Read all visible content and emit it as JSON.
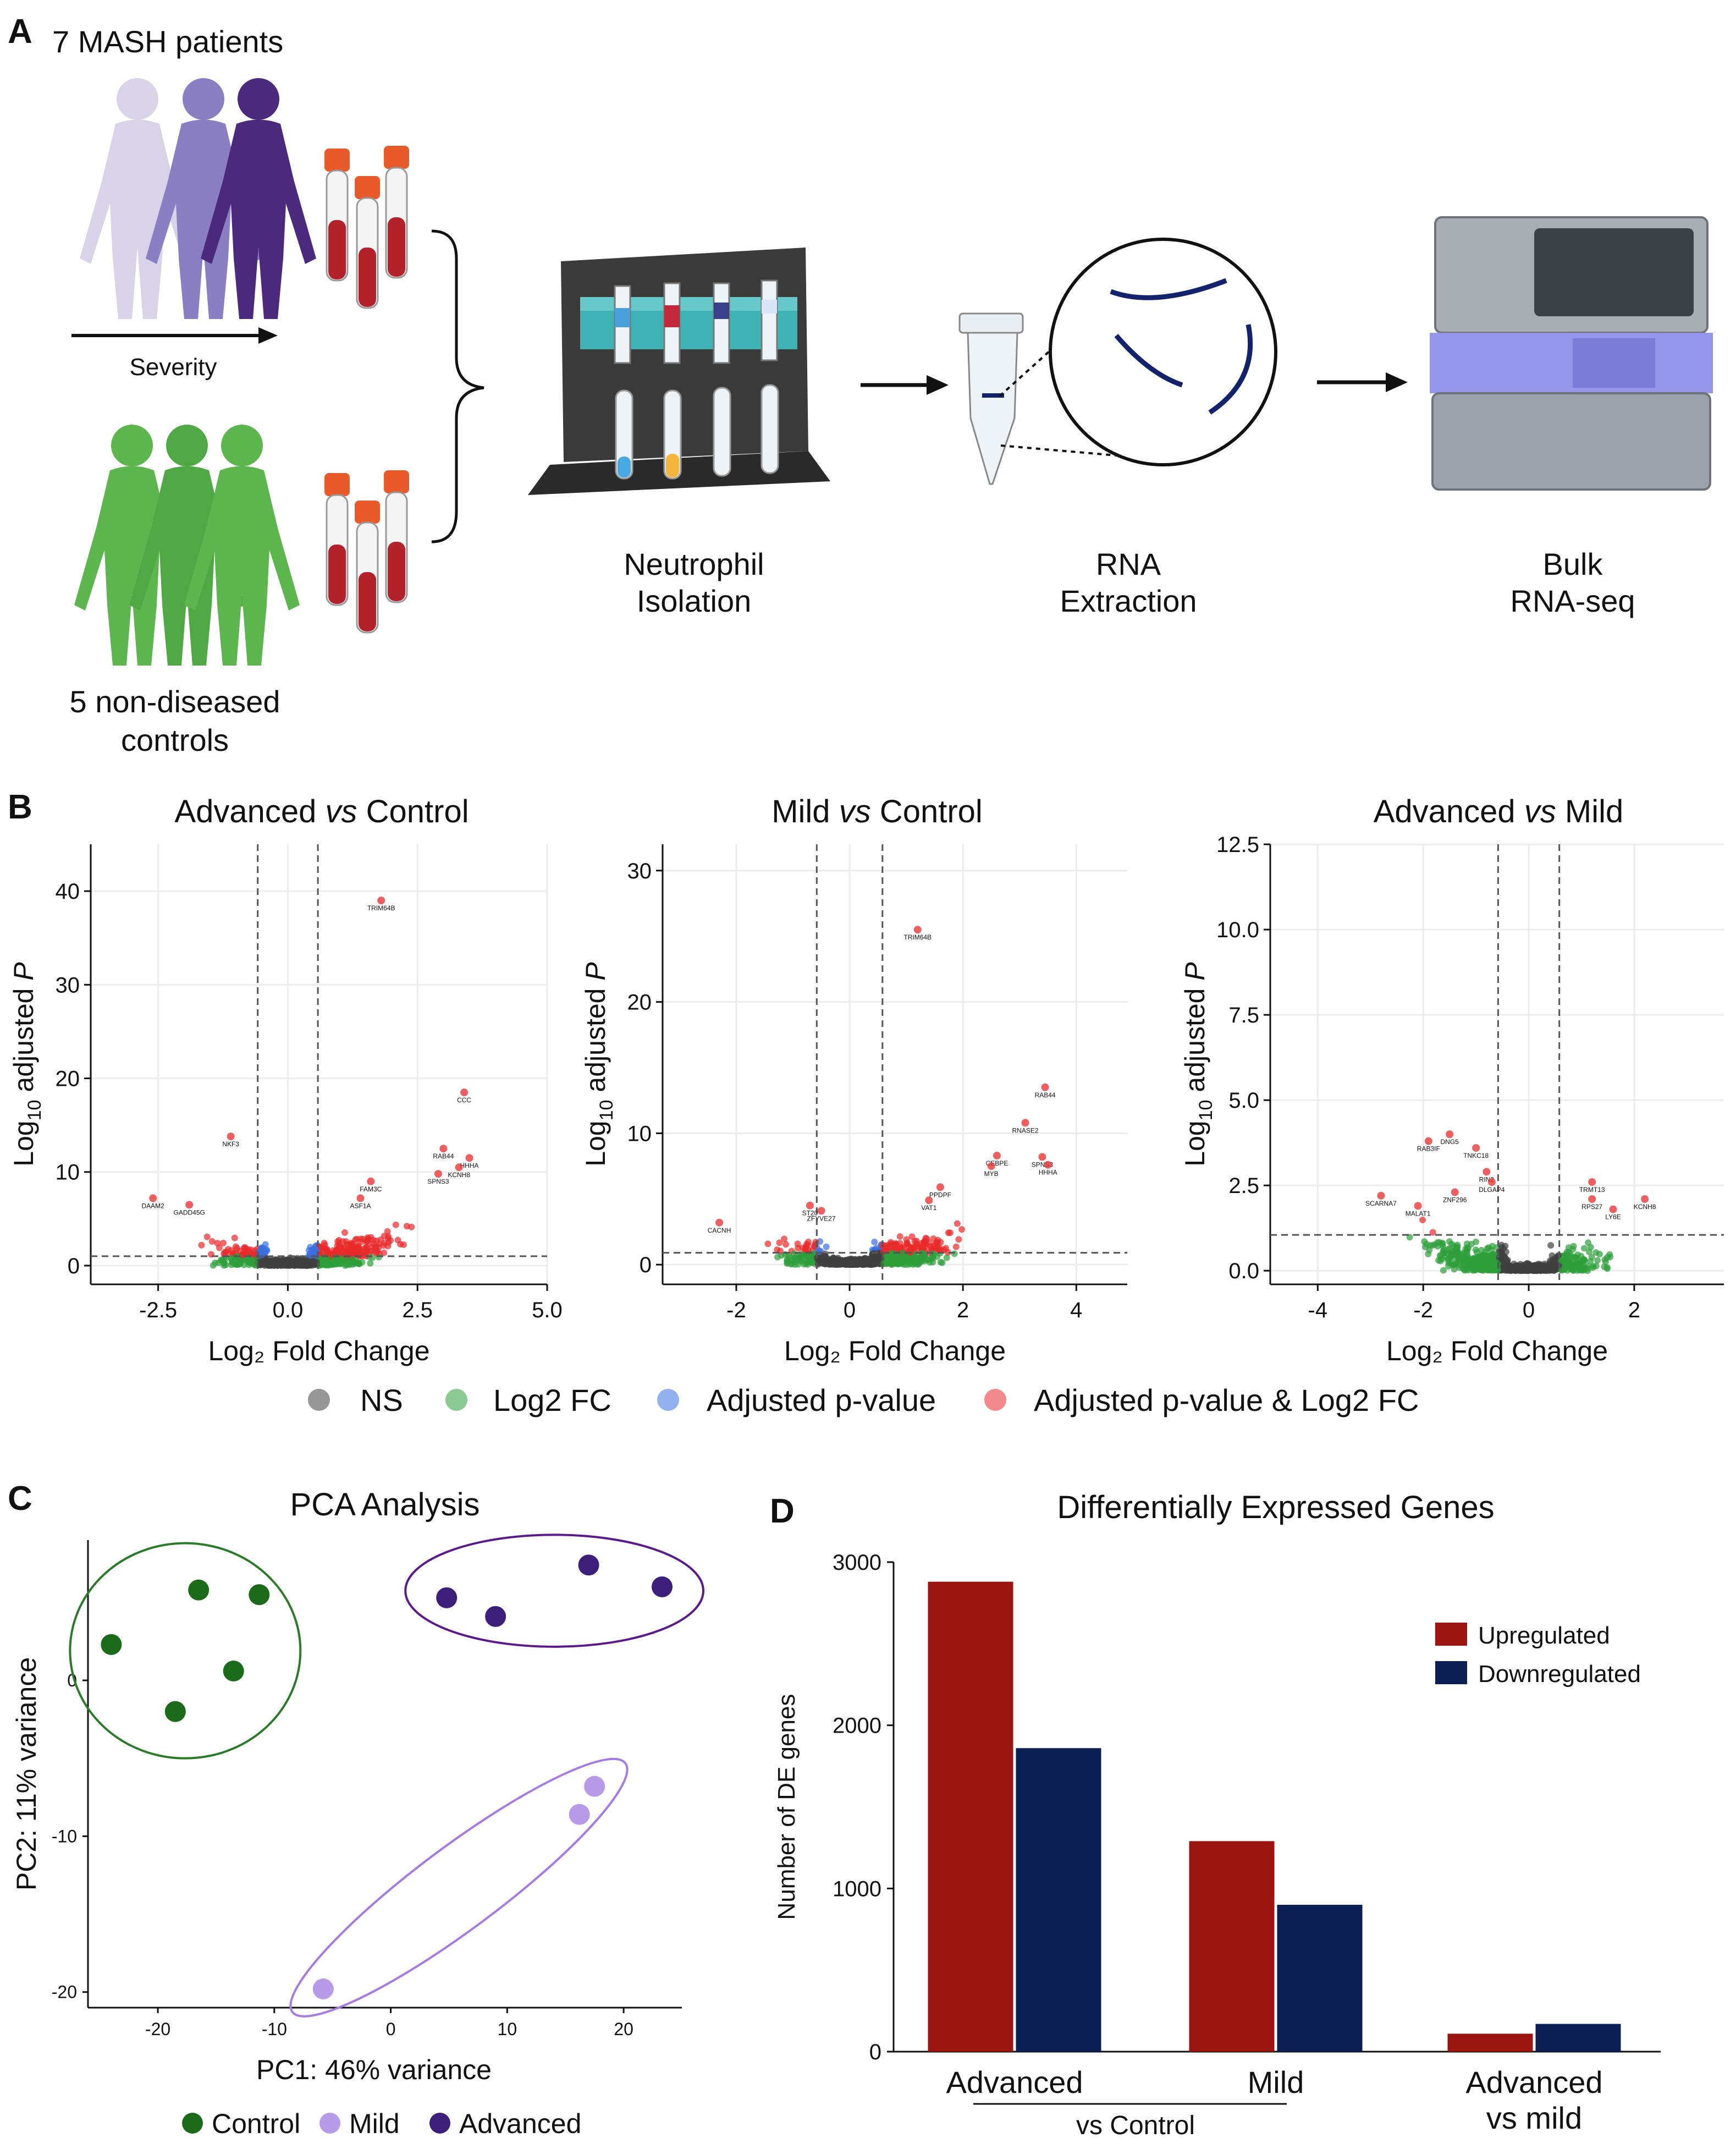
{
  "panel_labels": {
    "a": "A",
    "b": "B",
    "c": "C",
    "d": "D"
  },
  "panel_a": {
    "mash_label": "7 MASH patients",
    "severity_label": "Severity",
    "control_label_line1": "5 non-diseased",
    "control_label_line2": "controls",
    "step1_line1": "Neutrophil",
    "step1_line2": "Isolation",
    "step2_line1": "RNA",
    "step2_line2": "Extraction",
    "step3_line1": "Bulk",
    "step3_line2": "RNA-seq",
    "colors": {
      "mash_light": "#d6cfe6",
      "mash_mid": "#8a7fc2",
      "mash_dark": "#4b2a7e",
      "control_green": "#5cb54d",
      "tube_cap": "#e85a2a",
      "blood": "#b3222b",
      "rack": "#3a3a3a",
      "rack_band": "#3fb3b3",
      "sequencer": "#9aa1a8",
      "sequencer_glow": "#8f8ff0"
    }
  },
  "volcano_common": {
    "xlabel": "Log₂ Fold Change",
    "ylabel_prefix": "Log",
    "ylabel_sub": "10",
    "ylabel_mid": " adjusted ",
    "ylabel_p": "P",
    "legend": {
      "ns": "NS",
      "fc": "Log2 FC",
      "p": "Adjusted p-value",
      "both": "Adjusted p-value & Log2 FC"
    },
    "colors": {
      "ns": "#404040",
      "fc": "#2e9e3a",
      "p": "#3b6fe0",
      "both": "#e8292b"
    }
  },
  "chart_data": [
    {
      "id": "volcano_adv_ctrl",
      "type": "scatter",
      "title_a": "Advanced ",
      "title_vs": "vs",
      "title_b": " Control",
      "xlim": [
        -3.8,
        5.0
      ],
      "ylim": [
        -2,
        45
      ],
      "xticks": [
        "-2.5",
        "0.0",
        "2.5",
        "5.0"
      ],
      "xtick_values": [
        -2.5,
        0,
        2.5,
        5.0
      ],
      "yticks": [
        "0",
        "10",
        "20",
        "30",
        "40"
      ],
      "ytick_values": [
        0,
        10,
        20,
        30,
        40
      ],
      "fc_cutoff": [
        -0.58,
        0.58
      ],
      "p_cutoff": 1.0,
      "labels": [
        {
          "gene": "TRIM64B",
          "x": 1.8,
          "y": 39
        },
        {
          "gene": "CCC",
          "x": 3.4,
          "y": 18.5
        },
        {
          "gene": "RAB44",
          "x": 3.0,
          "y": 12.5
        },
        {
          "gene": "HHHA",
          "x": 3.5,
          "y": 11.5
        },
        {
          "gene": "KCNH8",
          "x": 3.3,
          "y": 10.5
        },
        {
          "gene": "SPNS3",
          "x": 2.9,
          "y": 9.8
        },
        {
          "gene": "NKF3",
          "x": -1.1,
          "y": 13.8
        },
        {
          "gene": "DAAM2",
          "x": -2.6,
          "y": 7.2
        },
        {
          "gene": "GADD45G",
          "x": -1.9,
          "y": 6.5
        },
        {
          "gene": "ASF1A",
          "x": 1.4,
          "y": 7.2
        },
        {
          "gene": "FAM3C",
          "x": 1.6,
          "y": 9
        }
      ]
    },
    {
      "id": "volcano_mild_ctrl",
      "type": "scatter",
      "title_a": "Mild ",
      "title_vs": "vs",
      "title_b": " Control",
      "xlim": [
        -3.3,
        4.9
      ],
      "ylim": [
        -1.5,
        32
      ],
      "xticks": [
        "-2",
        "0",
        "2",
        "4"
      ],
      "xtick_values": [
        -2,
        0,
        2,
        4
      ],
      "yticks": [
        "0",
        "10",
        "20",
        "30"
      ],
      "ytick_values": [
        0,
        10,
        20,
        30
      ],
      "fc_cutoff": [
        -0.58,
        0.58
      ],
      "p_cutoff": 0.9,
      "labels": [
        {
          "gene": "TRIM64B",
          "x": 1.2,
          "y": 25.5
        },
        {
          "gene": "RAB44",
          "x": 3.45,
          "y": 13.5
        },
        {
          "gene": "RNASE2",
          "x": 3.1,
          "y": 10.8
        },
        {
          "gene": "CEBPE",
          "x": 2.6,
          "y": 8.3
        },
        {
          "gene": "SPNS3",
          "x": 3.4,
          "y": 8.2
        },
        {
          "gene": "HHHA",
          "x": 3.5,
          "y": 7.6
        },
        {
          "gene": "MYB",
          "x": 2.5,
          "y": 7.5
        },
        {
          "gene": "PPDPF",
          "x": 1.6,
          "y": 5.9
        },
        {
          "gene": "VAT1",
          "x": 1.4,
          "y": 4.9
        },
        {
          "gene": "ST20",
          "x": -0.7,
          "y": 4.5
        },
        {
          "gene": "CACNH",
          "x": -2.3,
          "y": 3.2
        },
        {
          "gene": "ZFYVE27",
          "x": -0.5,
          "y": 4.1
        }
      ]
    },
    {
      "id": "volcano_adv_mild",
      "type": "scatter",
      "title_a": "Advanced ",
      "title_vs": "vs",
      "title_b": " Mild",
      "xlim": [
        -4.9,
        3.7
      ],
      "ylim": [
        -0.4,
        12.5
      ],
      "xticks": [
        "-4",
        "-2",
        "0",
        "2"
      ],
      "xtick_values": [
        -4,
        -2,
        0,
        2
      ],
      "yticks": [
        "0.0",
        "2.5",
        "5.0",
        "7.5",
        "10.0",
        "12.5"
      ],
      "ytick_values": [
        0,
        2.5,
        5,
        7.5,
        10,
        12.5
      ],
      "fc_cutoff": [
        -0.58,
        0.58
      ],
      "p_cutoff": 1.05,
      "labels": [
        {
          "gene": "RAB3IF",
          "x": -1.9,
          "y": 3.8
        },
        {
          "gene": "DNG5",
          "x": -1.5,
          "y": 4.0
        },
        {
          "gene": "TNKC18",
          "x": -1.0,
          "y": 3.6
        },
        {
          "gene": "RIN2",
          "x": -0.8,
          "y": 2.9
        },
        {
          "gene": "DLGAP4",
          "x": -0.7,
          "y": 2.6
        },
        {
          "gene": "ZNF296",
          "x": -1.4,
          "y": 2.3
        },
        {
          "gene": "SCARNA7",
          "x": -2.8,
          "y": 2.2
        },
        {
          "gene": "MALAT1",
          "x": -2.1,
          "y": 1.9
        },
        {
          "gene": "TRMT13",
          "x": 1.2,
          "y": 2.6
        },
        {
          "gene": "KCNH8",
          "x": 2.2,
          "y": 2.1
        },
        {
          "gene": "RPS27",
          "x": 1.2,
          "y": 2.1
        },
        {
          "gene": "LY6E",
          "x": 1.6,
          "y": 1.8
        }
      ]
    },
    {
      "id": "pca",
      "type": "scatter",
      "title": "PCA Analysis",
      "xlabel": "PC1: 46% variance",
      "ylabel": "PC2: 11% variance",
      "xlim": [
        -26,
        25
      ],
      "ylim": [
        -21,
        9
      ],
      "xticks": [
        "-20",
        "-10",
        "0",
        "10",
        "20"
      ],
      "xtick_values": [
        -20,
        -10,
        0,
        10,
        20
      ],
      "yticks": [
        "0",
        "-10",
        "-20"
      ],
      "ytick_values": [
        0,
        -10,
        -20
      ],
      "groups": [
        {
          "name": "Control",
          "color": "#1b6b1b",
          "ring": "#2a7a2a",
          "points": [
            [
              -24,
              2.3
            ],
            [
              -16.5,
              5.8
            ],
            [
              -11.3,
              5.5
            ],
            [
              -13.5,
              0.6
            ],
            [
              -18.5,
              -2
            ]
          ]
        },
        {
          "name": "Mild",
          "color": "#b79be8",
          "ring": "#a57be0",
          "points": [
            [
              17.5,
              -6.8
            ],
            [
              16.2,
              -8.6
            ],
            [
              -5.8,
              -19.8
            ]
          ]
        },
        {
          "name": "Advanced",
          "color": "#3d1e7a",
          "ring": "#5a1a8a",
          "points": [
            [
              4.8,
              5.3
            ],
            [
              9,
              4.1
            ],
            [
              17,
              7.4
            ],
            [
              23.3,
              6
            ]
          ]
        }
      ]
    },
    {
      "id": "de_genes",
      "type": "bar",
      "title": "Differentially Expressed Genes",
      "ylabel": "Number of DE genes",
      "ylim": [
        0,
        3000
      ],
      "yticks": [
        "0",
        "1000",
        "2000",
        "3000"
      ],
      "ytick_values": [
        0,
        1000,
        2000,
        3000
      ],
      "categories": [
        "Advanced",
        "Mild",
        "Advanced"
      ],
      "category_sub": [
        "",
        "",
        "vs mild"
      ],
      "group_label": "vs Control",
      "series": [
        {
          "name": "Upregulated",
          "color": "#9b1510",
          "values": [
            2880,
            1290,
            110
          ]
        },
        {
          "name": "Downregulated",
          "color": "#0b1f55",
          "values": [
            1860,
            900,
            170
          ]
        }
      ]
    }
  ]
}
